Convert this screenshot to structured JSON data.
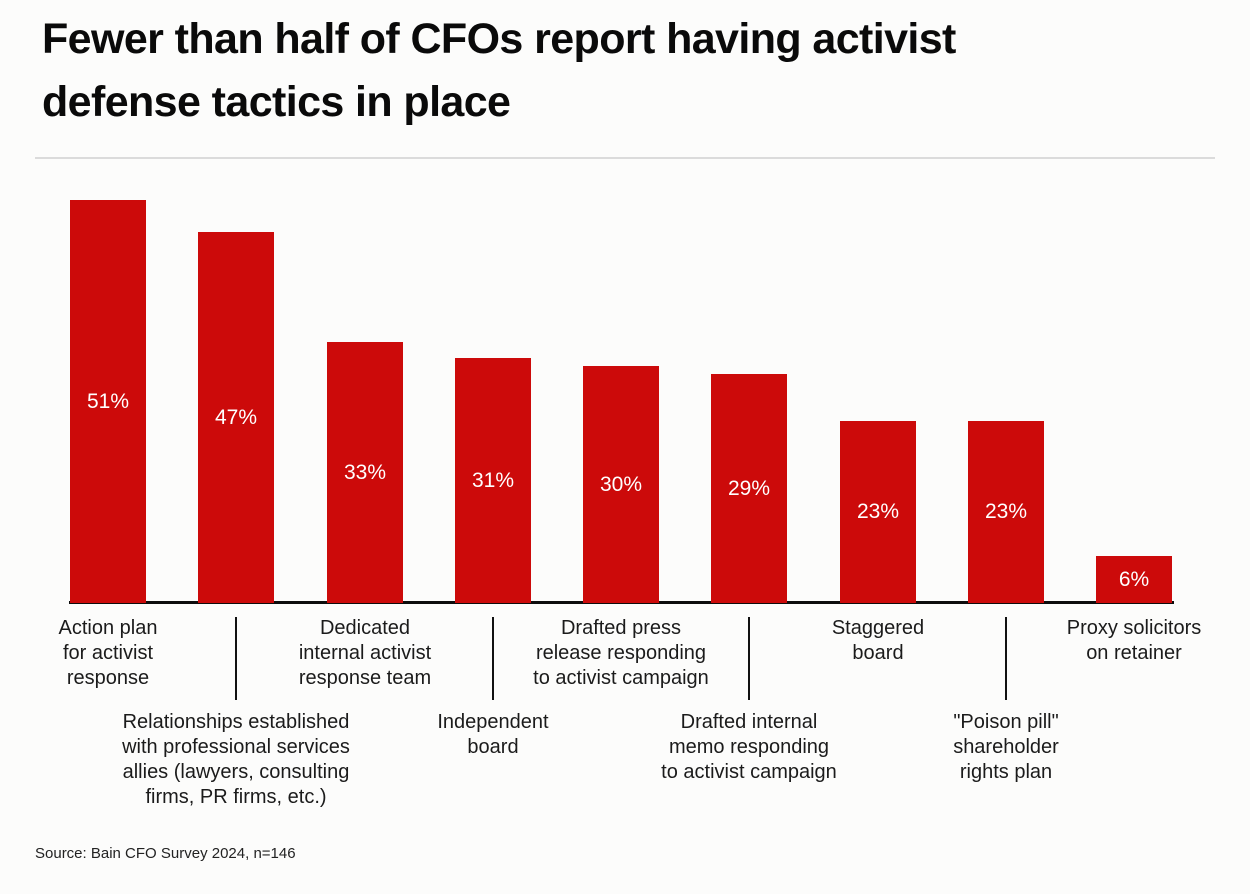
{
  "header": {
    "title": "Fewer than half of CFOs report having activist defense tactics in place",
    "title_line1": "Fewer than half of CFOs report having activist",
    "title_line2": "defense tactics in place"
  },
  "footer": {
    "source": "Source: Bain CFO Survey 2024, n=146"
  },
  "colors": {
    "bar": "#cc0a0a",
    "bar_value_text": "#ffffff",
    "title_text": "#0a0a0a",
    "category_text": "#1b1b1b",
    "axis": "#0d0d0d",
    "title_divider": "#dbdbdb",
    "background": "#fcfcfb"
  },
  "chart_data": {
    "type": "bar",
    "title": "Fewer than half of CFOs report having activist defense tactics in place",
    "xlabel": "",
    "ylabel": "",
    "unit": "%",
    "ylim": [
      0,
      51
    ],
    "grid": false,
    "legend": false,
    "y_axis_visible": false,
    "bar_color": "#cc0a0a",
    "categories": [
      "Action plan for activist response",
      "Relationships established with professional services allies (lawyers, consulting firms, PR firms, etc.)",
      "Dedicated internal activist response team",
      "Independent board",
      "Drafted press release responding to activist campaign",
      "Drafted internal memo responding to activist campaign",
      "Staggered board",
      "\"Poison pill\" shareholder rights plan",
      "Proxy solicitors on retainer"
    ],
    "values": [
      51,
      47,
      33,
      31,
      30,
      29,
      23,
      23,
      6
    ],
    "value_labels": [
      "51%",
      "47%",
      "33%",
      "31%",
      "30%",
      "29%",
      "23%",
      "23%",
      "6%"
    ],
    "label_rows": [
      "top",
      "bottom",
      "top",
      "bottom",
      "top",
      "bottom",
      "top",
      "bottom",
      "top"
    ],
    "label_lines": [
      [
        "Action plan",
        "for activist",
        "response"
      ],
      [
        "Relationships established",
        "with professional services",
        "allies (lawyers, consulting",
        "firms, PR firms, etc.)"
      ],
      [
        "Dedicated",
        "internal activist",
        "response team"
      ],
      [
        "Independent",
        "board"
      ],
      [
        "Drafted press",
        "release responding",
        "to activist campaign"
      ],
      [
        "Drafted internal",
        "memo responding",
        "to activist campaign"
      ],
      [
        "Staggered",
        "board"
      ],
      [
        "\"Poison pill\"",
        "shareholder",
        "rights plan"
      ],
      [
        "Proxy solicitors",
        "on retainer"
      ]
    ]
  }
}
